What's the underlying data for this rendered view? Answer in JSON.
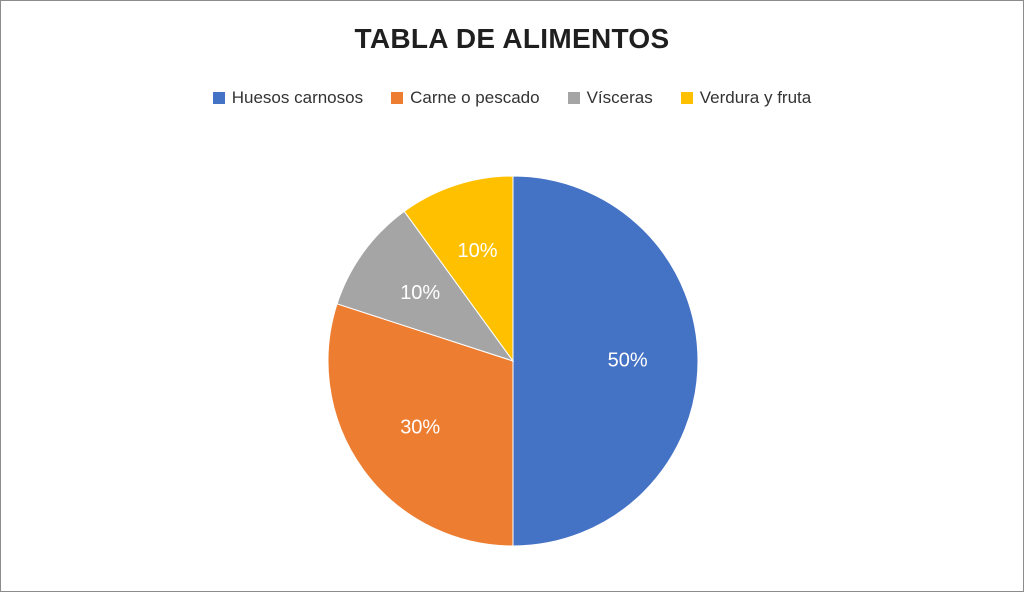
{
  "chart_data": {
    "type": "pie",
    "title": "TABLA DE ALIMENTOS",
    "legend_position": "top",
    "slices": [
      {
        "label": "Huesos carnosos",
        "value": 50,
        "display": "50%",
        "color": "#4472c4"
      },
      {
        "label": "Carne o pescado",
        "value": 30,
        "display": "30%",
        "color": "#ed7d31"
      },
      {
        "label": "Vísceras",
        "value": 10,
        "display": "10%",
        "color": "#a5a5a5"
      },
      {
        "label": "Verdura y fruta",
        "value": 10,
        "display": "10%",
        "color": "#ffc000"
      }
    ]
  }
}
